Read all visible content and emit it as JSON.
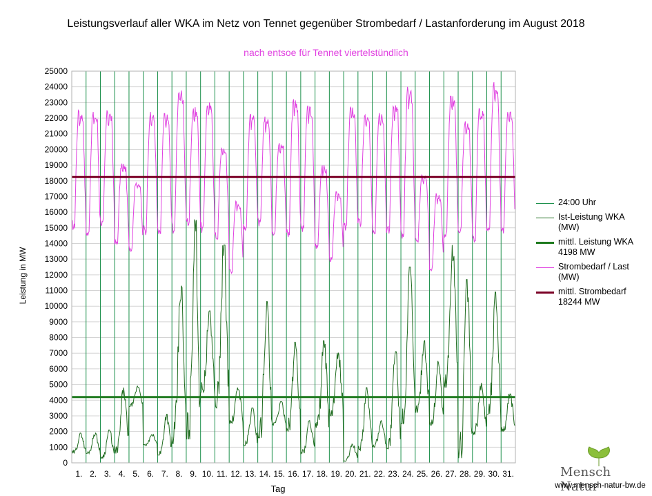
{
  "chart_data": {
    "type": "line",
    "title": "Leistungsverlauf aller WKA im Netz von Tennet gegenüber  Strombedarf / Lastanforderung im August 2018",
    "subtitle": "nach entsoe für Tennet viertelstündlich",
    "xlabel": "Tag",
    "ylabel": "Leistung in MW",
    "ylim": [
      0,
      25000
    ],
    "ytick_step": 1000,
    "yticks": [
      "0",
      "1000",
      "2000",
      "3000",
      "4000",
      "5000",
      "6000",
      "7000",
      "8000",
      "9000",
      "10000",
      "11000",
      "12000",
      "13000",
      "14000",
      "15000",
      "16000",
      "17000",
      "18000",
      "19000",
      "20000",
      "21000",
      "22000",
      "23000",
      "24000",
      "25000"
    ],
    "categories": [
      "1.",
      "2.",
      "3.",
      "4.",
      "5.",
      "6.",
      "7.",
      "8.",
      "9.",
      "10.",
      "11.",
      "12.",
      "13.",
      "14.",
      "15.",
      "16.",
      "17.",
      "18.",
      "19.",
      "20.",
      "21.",
      "22.",
      "23.",
      "24.",
      "25.",
      "26.",
      "27.",
      "28.",
      "29.",
      "30.",
      "31."
    ],
    "grid": true,
    "legend_position": "right",
    "series": [
      {
        "name": "24:00 Uhr",
        "color": "#1a8f4a",
        "kind": "day-markers"
      },
      {
        "name": "Ist-Leistung WKA\n(MW)",
        "color": "#1e6b1e",
        "kind": "line",
        "daily_max": [
          1900,
          1900,
          2100,
          4800,
          4900,
          1800,
          3100,
          11300,
          15500,
          9700,
          13900,
          4800,
          3500,
          10300,
          3900,
          7700,
          2700,
          7800,
          7000,
          1200,
          4800,
          2700,
          7100,
          12500,
          7800,
          6500,
          13900,
          11700,
          5100,
          10900,
          4400
        ],
        "daily_min": [
          600,
          600,
          300,
          600,
          3600,
          1100,
          500,
          1200,
          1500,
          4500,
          3500,
          2500,
          1100,
          1600,
          2400,
          2000,
          600,
          2000,
          3000,
          100,
          800,
          1000,
          900,
          2500,
          3200,
          2400,
          4800,
          300,
          1800,
          3100,
          2000
        ]
      },
      {
        "name": "mittl. Leistung WKA\n4198 MW",
        "color": "#1e7a1e",
        "kind": "hline",
        "value": 4198
      },
      {
        "name": "Strombedarf / Last\n(MW)",
        "color": "#e040e0",
        "kind": "line",
        "daily_max": [
          22500,
          22400,
          22500,
          19100,
          18000,
          22400,
          22300,
          23800,
          22700,
          23000,
          20200,
          16700,
          22300,
          22100,
          20600,
          23300,
          22800,
          19000,
          17300,
          22700,
          22200,
          22500,
          23000,
          24000,
          18400,
          17200,
          23400,
          21800,
          22600,
          24300,
          22500
        ],
        "daily_min": [
          14800,
          14300,
          15000,
          13800,
          13500,
          14500,
          14300,
          14600,
          15100,
          14600,
          14200,
          12100,
          14800,
          15000,
          14500,
          14300,
          14600,
          13600,
          12800,
          14700,
          15000,
          14500,
          14500,
          14000,
          14000,
          12200,
          14200,
          14600,
          14000,
          14600,
          14600
        ]
      },
      {
        "name": "mittl. Strombedarf\n18244 MW",
        "color": "#7a0026",
        "kind": "hline",
        "value": 18244
      }
    ]
  },
  "branding": {
    "logo_text": "Mensch Natur",
    "url": "www.mensch-natur-bw.de"
  }
}
